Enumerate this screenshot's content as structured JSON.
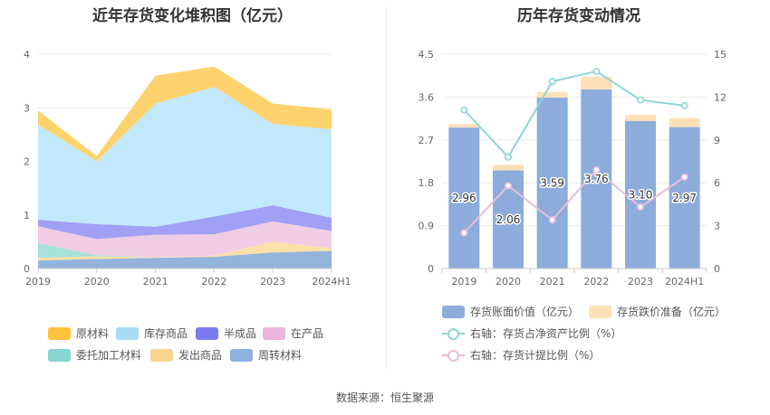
{
  "source_text": "数据来源：恒生聚源",
  "chart_data": [
    {
      "type": "area",
      "stacked": true,
      "title": "近年存货变化堆积图（亿元）",
      "categories": [
        "2019",
        "2020",
        "2021",
        "2022",
        "2023",
        "2024H1"
      ],
      "ylim": [
        0,
        4
      ],
      "yticks": [
        "0",
        "1",
        "2",
        "3",
        "4"
      ],
      "grid": true,
      "legend_position": "bottom",
      "series": [
        {
          "name": "周转材料",
          "color": "#94b4de",
          "values": [
            0.15,
            0.18,
            0.2,
            0.22,
            0.3,
            0.33
          ]
        },
        {
          "name": "发出商品",
          "color": "#fbe0a8",
          "values": [
            0.05,
            0.05,
            0.01,
            0.02,
            0.2,
            0.05
          ]
        },
        {
          "name": "委托加工材料",
          "color": "#a6e1dc",
          "values": [
            0.27,
            0.02,
            0.0,
            0.0,
            0.0,
            0.0
          ]
        },
        {
          "name": "在产品",
          "color": "#f0cde4",
          "values": [
            0.32,
            0.3,
            0.42,
            0.4,
            0.38,
            0.32
          ]
        },
        {
          "name": "半成品",
          "color": "#a0a0f6",
          "values": [
            0.12,
            0.28,
            0.15,
            0.33,
            0.3,
            0.25
          ]
        },
        {
          "name": "库存商品",
          "color": "#c2e8fb",
          "values": [
            1.78,
            1.17,
            2.3,
            2.42,
            1.52,
            1.65
          ]
        },
        {
          "name": "原材料",
          "color": "#fed36e",
          "values": [
            0.26,
            0.1,
            0.52,
            0.38,
            0.38,
            0.37
          ]
        }
      ],
      "legend_order": [
        "原材料",
        "库存商品",
        "半成品",
        "在产品",
        "委托加工材料",
        "发出商品",
        "周转材料"
      ],
      "legend_colors": [
        "#fec33d",
        "#a7dcf6",
        "#7c7cf0",
        "#ebb5de",
        "#86d6cf",
        "#f9d58e",
        "#8fb1dc"
      ]
    },
    {
      "type": "bar",
      "stacked": true,
      "title": "历年存货变动情况",
      "categories": [
        "2019",
        "2020",
        "2021",
        "2022",
        "2023",
        "2024H1"
      ],
      "left_axis": {
        "ylim": [
          0,
          4.5
        ],
        "ticks": [
          "0",
          "0.9",
          "1.8",
          "2.7",
          "3.6",
          "4.5"
        ]
      },
      "right_axis": {
        "ylim": [
          0,
          15
        ],
        "ticks": [
          "0",
          "3",
          "6",
          "9",
          "12",
          "15"
        ]
      },
      "grid": true,
      "legend_position": "bottom",
      "bars": [
        {
          "name": "存货账面价值（亿元）",
          "color": "#8dacdb",
          "values": [
            2.96,
            2.06,
            3.59,
            3.76,
            3.1,
            2.97
          ],
          "labels": [
            "2.96",
            "2.06",
            "3.59",
            "3.76",
            "3.10",
            "2.97"
          ]
        },
        {
          "name": "存货跌价准备（亿元）",
          "color": "#fde0b6",
          "values": [
            0.07,
            0.12,
            0.12,
            0.27,
            0.13,
            0.19
          ]
        }
      ],
      "lines": [
        {
          "name": "右轴：存货占净资产比例（%）",
          "color": "#8ed6d6",
          "values": [
            11.1,
            7.8,
            13.1,
            13.8,
            11.8,
            11.4
          ]
        },
        {
          "name": "右轴：存货计提比例（%）",
          "color": "#eabcdc",
          "values": [
            2.5,
            5.8,
            3.4,
            6.9,
            4.3,
            6.4
          ]
        }
      ]
    }
  ]
}
